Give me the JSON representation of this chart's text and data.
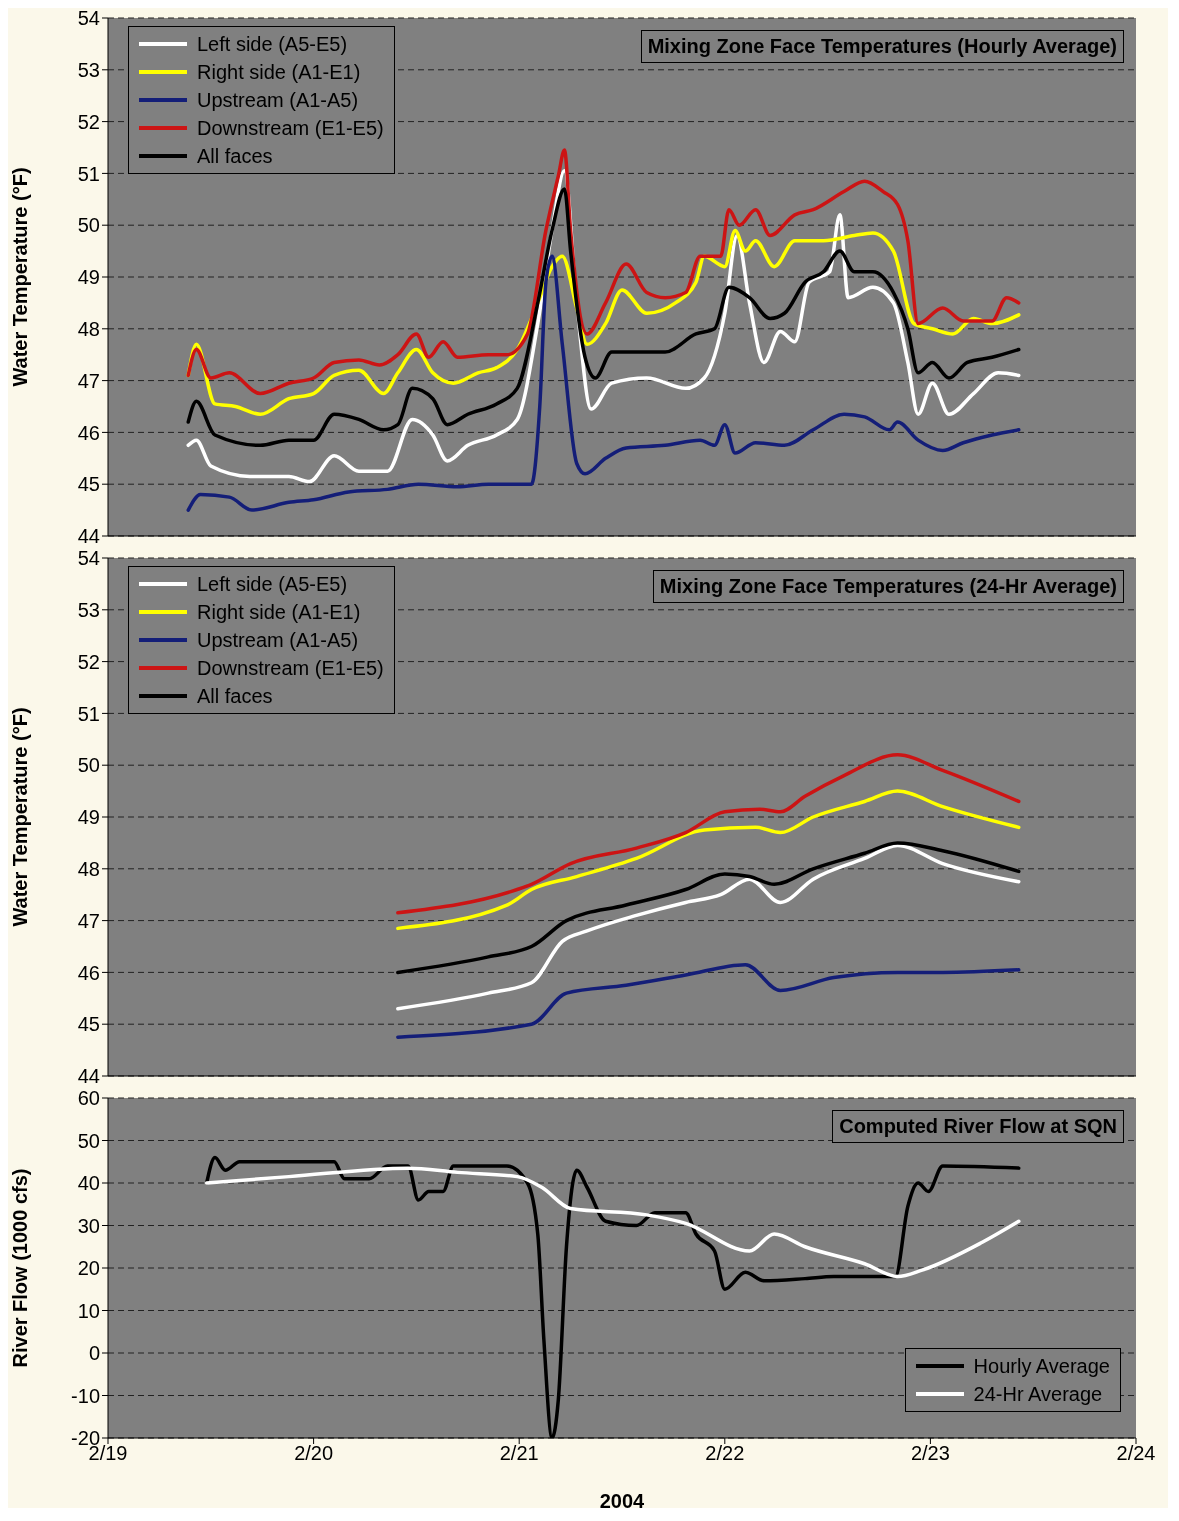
{
  "chart_data": [
    {
      "type": "line",
      "title": "Mixing Zone Face Temperatures (Hourly Average)",
      "ylabel": "Water Temperature (°F)",
      "xlim": [
        "2004-02-19",
        "2004-02-24"
      ],
      "xticks": [
        {
          "value": "2004-02-19",
          "label": null
        },
        {
          "value": "2004-02-20",
          "label": null
        },
        {
          "value": "2004-02-21",
          "label": null
        },
        {
          "value": "2004-02-22",
          "label": null
        },
        {
          "value": "2004-02-23",
          "label": null
        },
        {
          "value": "2004-02-24",
          "label": null
        }
      ],
      "ylim": [
        44,
        54
      ],
      "yticks": [
        44,
        45,
        46,
        47,
        48,
        49,
        50,
        51,
        52,
        53,
        54
      ],
      "grid": "y",
      "legend": "top left",
      "tick_labels": "y",
      "line_style": "solid",
      "series": [
        {
          "name": "Left side (A5-E5)",
          "color": "#ffffff",
          "x": [
            "2004-02-19T09:22",
            "2004-02-19T10:19",
            "2004-02-19T12:00",
            "2004-02-19T16:34",
            "2004-02-19T21:07",
            "2004-02-19T23:31",
            "2004-02-20T02:24",
            "2004-02-20T05:17",
            "2004-02-20T08:38",
            "2004-02-20T11:31",
            "2004-02-20T13:55",
            "2004-02-20T15:36",
            "2004-02-20T18:00",
            "2004-02-20T21:22",
            "2004-02-20T23:46",
            "2004-02-21T02:10",
            "2004-02-21T03:50",
            "2004-02-21T05:17",
            "2004-02-21T06:43",
            "2004-02-21T08:24",
            "2004-02-21T10:48",
            "2004-02-21T14:53",
            "2004-02-21T19:26",
            "2004-02-21T21:36",
            "2004-02-22T00:00",
            "2004-02-22T01:26",
            "2004-02-22T02:53",
            "2004-02-22T04:34",
            "2004-02-22T06:29",
            "2004-02-22T08:10",
            "2004-02-22T09:50",
            "2004-02-22T12:14",
            "2004-02-22T13:26",
            "2004-02-22T14:24",
            "2004-02-22T17:17",
            "2004-02-22T19:41",
            "2004-02-22T21:22",
            "2004-02-22T22:34",
            "2004-02-23T00:14",
            "2004-02-23T02:10",
            "2004-02-23T05:02",
            "2004-02-23T07:55",
            "2004-02-23T10:19"
          ],
          "values": [
            45.75,
            45.85,
            45.35,
            45.15,
            45.15,
            45.05,
            45.55,
            45.25,
            45.25,
            46.25,
            45.95,
            45.45,
            45.75,
            45.95,
            46.25,
            48.1,
            49.9,
            51.05,
            48.5,
            46.45,
            46.95,
            47.05,
            46.85,
            47.05,
            48.3,
            49.8,
            48.5,
            47.35,
            47.95,
            47.75,
            48.9,
            49.1,
            50.2,
            48.6,
            48.8,
            48.5,
            47.35,
            46.35,
            46.95,
            46.35,
            46.75,
            47.15,
            47.1
          ]
        },
        {
          "name": "Right side (A1-E1)",
          "color": "#ffff00",
          "x": [
            "2004-02-19T09:22",
            "2004-02-19T10:19",
            "2004-02-19T12:29",
            "2004-02-19T14:53",
            "2004-02-19T17:46",
            "2004-02-19T21:07",
            "2004-02-20T00:00",
            "2004-02-20T02:24",
            "2004-02-20T05:17",
            "2004-02-20T08:10",
            "2004-02-20T09:50",
            "2004-02-20T12:00",
            "2004-02-20T13:55",
            "2004-02-20T16:19",
            "2004-02-20T19:12",
            "2004-02-20T21:22",
            "2004-02-20T23:46",
            "2004-02-21T02:10",
            "2004-02-21T03:50",
            "2004-02-21T05:02",
            "2004-02-21T06:43",
            "2004-02-21T07:55",
            "2004-02-21T10:05",
            "2004-02-21T12:00",
            "2004-02-21T14:53",
            "2004-02-21T18:14",
            "2004-02-21T20:38",
            "2004-02-21T21:36",
            "2004-02-22T00:00",
            "2004-02-22T01:12",
            "2004-02-22T02:24",
            "2004-02-22T03:36",
            "2004-02-22T05:46",
            "2004-02-22T08:10",
            "2004-02-22T11:31",
            "2004-02-22T15:07",
            "2004-02-22T17:17",
            "2004-02-22T19:41",
            "2004-02-22T22:05",
            "2004-02-23T00:14",
            "2004-02-23T02:38",
            "2004-02-23T05:02",
            "2004-02-23T07:12",
            "2004-02-23T10:19"
          ],
          "values": [
            47.1,
            47.7,
            46.55,
            46.5,
            46.35,
            46.65,
            46.75,
            47.1,
            47.2,
            46.75,
            47.15,
            47.6,
            47.15,
            46.95,
            47.15,
            47.25,
            47.6,
            48.5,
            49.2,
            49.4,
            48.4,
            47.7,
            48.1,
            48.75,
            48.3,
            48.5,
            48.9,
            49.4,
            49.2,
            49.9,
            49.5,
            49.7,
            49.2,
            49.7,
            49.7,
            49.8,
            49.85,
            49.5,
            48.1,
            48.0,
            47.9,
            48.2,
            48.1,
            48.27
          ]
        },
        {
          "name": "Upstream (A1-A5)",
          "color": "#141e78",
          "x": [
            "2004-02-19T09:22",
            "2004-02-19T10:48",
            "2004-02-19T14:10",
            "2004-02-19T16:48",
            "2004-02-19T21:07",
            "2004-02-20T00:00",
            "2004-02-20T04:05",
            "2004-02-20T08:38",
            "2004-02-20T12:14",
            "2004-02-20T16:48",
            "2004-02-20T20:24",
            "2004-02-21T01:26",
            "2004-02-21T02:24",
            "2004-02-21T03:07",
            "2004-02-21T03:50",
            "2004-02-21T05:02",
            "2004-02-21T06:43",
            "2004-02-21T07:41",
            "2004-02-21T10:05",
            "2004-02-21T12:29",
            "2004-02-21T17:02",
            "2004-02-21T21:07",
            "2004-02-21T22:48",
            "2004-02-22T00:00",
            "2004-02-22T01:12",
            "2004-02-22T03:36",
            "2004-02-22T06:58",
            "2004-02-22T10:19",
            "2004-02-22T13:55",
            "2004-02-22T16:19",
            "2004-02-22T19:12",
            "2004-02-22T20:10",
            "2004-02-22T22:34",
            "2004-02-23T01:26",
            "2004-02-23T03:50",
            "2004-02-23T07:12",
            "2004-02-23T10:19"
          ],
          "values": [
            44.5,
            44.8,
            44.75,
            44.5,
            44.65,
            44.7,
            44.85,
            44.9,
            45.0,
            44.95,
            45.0,
            45.0,
            46.5,
            48.9,
            49.4,
            47.7,
            45.4,
            45.2,
            45.5,
            45.7,
            45.75,
            45.85,
            45.75,
            46.15,
            45.6,
            45.8,
            45.75,
            46.05,
            46.35,
            46.3,
            46.05,
            46.2,
            45.85,
            45.65,
            45.8,
            45.95,
            46.05
          ]
        },
        {
          "name": "Downstream (E1-E5)",
          "color": "#cc1414",
          "x": [
            "2004-02-19T09:22",
            "2004-02-19T10:19",
            "2004-02-19T12:00",
            "2004-02-19T14:10",
            "2004-02-19T17:46",
            "2004-02-19T21:07",
            "2004-02-20T00:00",
            "2004-02-20T02:24",
            "2004-02-20T05:17",
            "2004-02-20T07:41",
            "2004-02-20T09:50",
            "2004-02-20T12:00",
            "2004-02-20T13:26",
            "2004-02-20T15:07",
            "2004-02-20T16:48",
            "2004-02-20T20:24",
            "2004-02-20T22:34",
            "2004-02-21T00:58",
            "2004-02-21T03:07",
            "2004-02-21T04:34",
            "2004-02-21T05:17",
            "2004-02-21T06:00",
            "2004-02-21T07:55",
            "2004-02-21T10:05",
            "2004-02-21T12:29",
            "2004-02-21T14:53",
            "2004-02-21T17:02",
            "2004-02-21T19:26",
            "2004-02-21T21:07",
            "2004-02-21T23:31",
            "2004-02-22T00:29",
            "2004-02-22T01:41",
            "2004-02-22T03:36",
            "2004-02-22T05:17",
            "2004-02-22T08:10",
            "2004-02-22T10:19",
            "2004-02-22T13:55",
            "2004-02-22T16:19",
            "2004-02-22T18:29",
            "2004-02-22T20:10",
            "2004-02-22T21:22",
            "2004-02-22T22:34",
            "2004-02-23T01:26",
            "2004-02-23T03:50",
            "2004-02-23T07:12",
            "2004-02-23T08:53",
            "2004-02-23T10:19"
          ],
          "values": [
            47.1,
            47.6,
            47.05,
            47.15,
            46.75,
            46.95,
            47.05,
            47.35,
            47.4,
            47.3,
            47.5,
            47.9,
            47.45,
            47.75,
            47.45,
            47.5,
            47.5,
            47.9,
            49.9,
            50.95,
            51.45,
            49.9,
            47.9,
            48.5,
            49.25,
            48.7,
            48.6,
            48.7,
            49.4,
            49.4,
            50.3,
            50.0,
            50.3,
            49.8,
            50.2,
            50.3,
            50.65,
            50.85,
            50.65,
            50.4,
            49.7,
            48.1,
            48.4,
            48.15,
            48.15,
            48.6,
            48.5
          ]
        },
        {
          "name": "All faces",
          "color": "#000000",
          "x": [
            "2004-02-19T09:22",
            "2004-02-19T10:19",
            "2004-02-19T12:29",
            "2004-02-19T17:46",
            "2004-02-19T21:07",
            "2004-02-20T00:00",
            "2004-02-20T02:24",
            "2004-02-20T05:17",
            "2004-02-20T08:10",
            "2004-02-20T09:50",
            "2004-02-20T11:31",
            "2004-02-20T13:55",
            "2004-02-20T15:36",
            "2004-02-20T18:00",
            "2004-02-20T21:22",
            "2004-02-20T23:46",
            "2004-02-21T02:10",
            "2004-02-21T03:50",
            "2004-02-21T05:17",
            "2004-02-21T06:00",
            "2004-02-21T07:41",
            "2004-02-21T08:53",
            "2004-02-21T10:48",
            "2004-02-21T17:02",
            "2004-02-21T20:38",
            "2004-02-21T22:48",
            "2004-02-22T00:29",
            "2004-02-22T02:53",
            "2004-02-22T05:17",
            "2004-02-22T06:58",
            "2004-02-22T09:22",
            "2004-02-22T11:31",
            "2004-02-22T13:26",
            "2004-02-22T15:07",
            "2004-02-22T17:17",
            "2004-02-22T19:41",
            "2004-02-22T21:22",
            "2004-02-22T22:34",
            "2004-02-23T00:14",
            "2004-02-23T02:10",
            "2004-02-23T04:19",
            "2004-02-23T07:12",
            "2004-02-23T10:19"
          ],
          "values": [
            46.2,
            46.6,
            45.95,
            45.75,
            45.85,
            45.85,
            46.35,
            46.25,
            46.05,
            46.15,
            46.85,
            46.65,
            46.15,
            46.35,
            46.55,
            46.85,
            48.5,
            49.9,
            50.7,
            49.5,
            47.45,
            47.05,
            47.55,
            47.55,
            47.9,
            48.0,
            48.8,
            48.6,
            48.2,
            48.3,
            48.9,
            49.1,
            49.5,
            49.1,
            49.1,
            48.7,
            48.0,
            47.15,
            47.35,
            47.05,
            47.35,
            47.45,
            47.6
          ]
        }
      ]
    },
    {
      "type": "line",
      "title": "Mixing Zone Face Temperatures (24-Hr Average)",
      "ylabel": "Water Temperature (°F)",
      "xlim": [
        "2004-02-19",
        "2004-02-24"
      ],
      "xticks": [
        {
          "value": "2004-02-19",
          "label": null
        },
        {
          "value": "2004-02-20",
          "label": null
        },
        {
          "value": "2004-02-21",
          "label": null
        },
        {
          "value": "2004-02-22",
          "label": null
        },
        {
          "value": "2004-02-23",
          "label": null
        },
        {
          "value": "2004-02-24",
          "label": null
        }
      ],
      "ylim": [
        44,
        54
      ],
      "yticks": [
        44,
        45,
        46,
        47,
        48,
        49,
        50,
        51,
        52,
        53,
        54
      ],
      "grid": "y",
      "legend": "top left",
      "tick_labels": "y",
      "line_style": "solid",
      "series": [
        {
          "name": "Left side (A5-E5)",
          "color": "#ffffff",
          "x": [
            "2004-02-20T09:50",
            "2004-02-20T20:24",
            "2004-02-21T01:26",
            "2004-02-21T05:02",
            "2004-02-21T07:55",
            "2004-02-21T13:41",
            "2004-02-21T19:26",
            "2004-02-21T23:31",
            "2004-02-22T02:53",
            "2004-02-22T06:29",
            "2004-02-22T10:19",
            "2004-02-22T16:19",
            "2004-02-22T20:10",
            "2004-02-23T01:26",
            "2004-02-23T10:19"
          ],
          "values": [
            45.3,
            45.6,
            45.8,
            46.6,
            46.8,
            47.1,
            47.35,
            47.5,
            47.8,
            47.35,
            47.8,
            48.2,
            48.45,
            48.1,
            47.75
          ]
        },
        {
          "name": "Right side (A1-E1)",
          "color": "#ffff00",
          "x": [
            "2004-02-20T09:50",
            "2004-02-20T22:34",
            "2004-02-21T01:26",
            "2004-02-21T06:43",
            "2004-02-21T13:41",
            "2004-02-21T21:36",
            "2004-02-22T03:36",
            "2004-02-22T06:29",
            "2004-02-22T10:19",
            "2004-02-22T16:19",
            "2004-02-22T20:10",
            "2004-02-23T01:26",
            "2004-02-23T10:19"
          ],
          "values": [
            46.85,
            47.3,
            47.6,
            47.85,
            48.2,
            48.75,
            48.8,
            48.7,
            49.0,
            49.3,
            49.5,
            49.2,
            48.8
          ]
        },
        {
          "name": "Upstream (A1-A5)",
          "color": "#141e78",
          "x": [
            "2004-02-20T09:50",
            "2004-02-21T01:26",
            "2004-02-21T05:31",
            "2004-02-21T12:29",
            "2004-02-21T19:26",
            "2004-02-22T02:24",
            "2004-02-22T06:29",
            "2004-02-22T12:43",
            "2004-02-22T20:10",
            "2004-02-23T01:26",
            "2004-02-23T10:19"
          ],
          "values": [
            44.75,
            45.0,
            45.6,
            45.75,
            45.95,
            46.15,
            45.65,
            45.9,
            46.0,
            46.0,
            46.05
          ]
        },
        {
          "name": "Downstream (E1-E5)",
          "color": "#cc1414",
          "x": [
            "2004-02-20T09:50",
            "2004-02-20T23:46",
            "2004-02-21T01:26",
            "2004-02-21T06:00",
            "2004-02-21T13:41",
            "2004-02-21T19:26",
            "2004-02-22T00:00",
            "2004-02-22T04:05",
            "2004-02-22T06:29",
            "2004-02-22T09:22",
            "2004-02-22T13:55",
            "2004-02-22T20:10",
            "2004-02-23T01:26",
            "2004-02-23T10:19"
          ],
          "values": [
            47.15,
            47.6,
            47.7,
            48.1,
            48.4,
            48.7,
            49.1,
            49.15,
            49.1,
            49.4,
            49.8,
            50.2,
            49.9,
            49.3
          ]
        },
        {
          "name": "All faces",
          "color": "#000000",
          "x": [
            "2004-02-20T09:50",
            "2004-02-20T20:24",
            "2004-02-21T01:26",
            "2004-02-21T05:31",
            "2004-02-21T12:29",
            "2004-02-21T19:26",
            "2004-02-22T00:00",
            "2004-02-22T02:53",
            "2004-02-22T05:46",
            "2004-02-22T10:19",
            "2004-02-22T16:19",
            "2004-02-22T20:10",
            "2004-02-23T01:26",
            "2004-02-23T10:19"
          ],
          "values": [
            46.0,
            46.3,
            46.5,
            47.0,
            47.3,
            47.6,
            47.9,
            47.85,
            47.7,
            48.0,
            48.3,
            48.5,
            48.35,
            47.95
          ]
        }
      ]
    },
    {
      "type": "line",
      "title": "Computed River Flow at SQN",
      "ylabel": "River Flow  (1000 cfs)",
      "xlabel": "2004",
      "xlim": [
        "2004-02-19",
        "2004-02-24"
      ],
      "xticks": [
        {
          "value": "2004-02-19",
          "label": "2/19"
        },
        {
          "value": "2004-02-20",
          "label": "2/20"
        },
        {
          "value": "2004-02-21",
          "label": "2/21"
        },
        {
          "value": "2004-02-22",
          "label": "2/22"
        },
        {
          "value": "2004-02-23",
          "label": "2/23"
        },
        {
          "value": "2004-02-24",
          "label": "2/24"
        }
      ],
      "ylim": [
        -20,
        60
      ],
      "yticks": [
        -20,
        -10,
        0,
        10,
        20,
        30,
        40,
        50,
        60
      ],
      "grid": "y",
      "legend": "bottom right",
      "line_style": "solid",
      "series": [
        {
          "name": "Hourly Average",
          "color": "#000000",
          "x": [
            "2004-02-19T11:31",
            "2004-02-19T12:29",
            "2004-02-19T13:41",
            "2004-02-19T15:22",
            "2004-02-20T02:24",
            "2004-02-20T03:36",
            "2004-02-20T06:29",
            "2004-02-20T08:38",
            "2004-02-20T11:02",
            "2004-02-20T12:14",
            "2004-02-20T13:26",
            "2004-02-20T15:07",
            "2004-02-20T16:19",
            "2004-02-20T22:34",
            "2004-02-21T00:58",
            "2004-02-21T02:10",
            "2004-02-21T02:53",
            "2004-02-21T03:50",
            "2004-02-21T04:34",
            "2004-02-21T05:31",
            "2004-02-21T06:43",
            "2004-02-21T07:55",
            "2004-02-21T10:05",
            "2004-02-21T13:41",
            "2004-02-21T15:50",
            "2004-02-21T19:26",
            "2004-02-21T20:38",
            "2004-02-21T22:48",
            "2004-02-22T00:00",
            "2004-02-22T02:24",
            "2004-02-22T04:34",
            "2004-02-22T09:22",
            "2004-02-22T12:43",
            "2004-02-22T19:55",
            "2004-02-22T21:22",
            "2004-02-22T22:34",
            "2004-02-22T23:46",
            "2004-02-23T01:26",
            "2004-02-23T10:19"
          ],
          "values": [
            40,
            46,
            43,
            45,
            45,
            41,
            41,
            44,
            44,
            36,
            38,
            38,
            44,
            44,
            40,
            28,
            3,
            -20,
            -11,
            25,
            43,
            39,
            31,
            30,
            33,
            33,
            28,
            24,
            15,
            19,
            17,
            17.5,
            18,
            18,
            34.5,
            40,
            38,
            44,
            43.5
          ]
        },
        {
          "name": "24-Hr Average",
          "color": "#ffffff",
          "x": [
            "2004-02-19T11:31",
            "2004-02-19T21:07",
            "2004-02-20T11:02",
            "2004-02-20T16:48",
            "2004-02-20T23:46",
            "2004-02-21T02:38",
            "2004-02-21T06:00",
            "2004-02-21T14:53",
            "2004-02-21T19:26",
            "2004-02-22T02:53",
            "2004-02-22T05:46",
            "2004-02-22T09:22",
            "2004-02-22T16:19",
            "2004-02-22T20:10",
            "2004-02-22T23:02",
            "2004-02-23T06:00",
            "2004-02-23T10:19"
          ],
          "values": [
            40,
            41.5,
            43.5,
            42.5,
            41.5,
            39,
            34,
            32.5,
            30.5,
            24,
            28,
            25,
            21,
            18,
            19.5,
            26,
            31
          ]
        }
      ]
    }
  ]
}
